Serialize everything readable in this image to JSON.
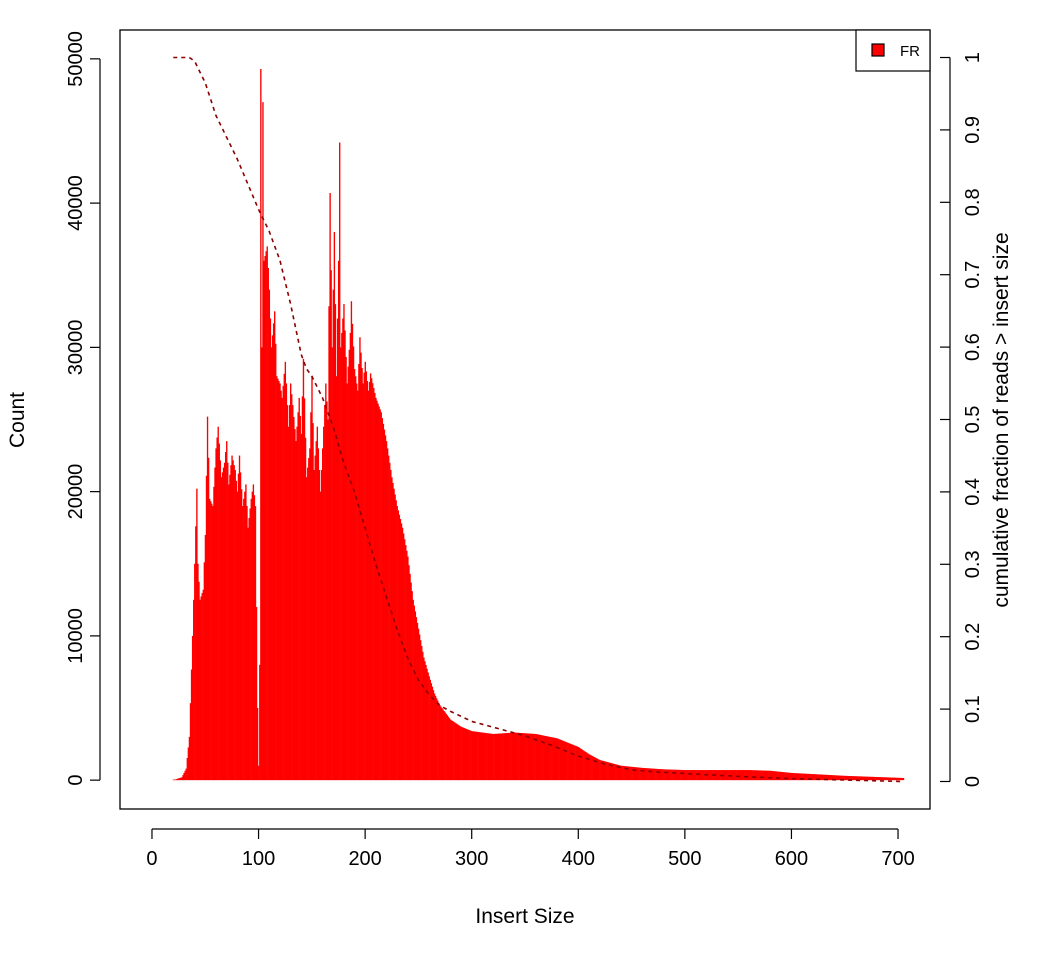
{
  "chart_data": {
    "type": "bar",
    "xlabel": "Insert Size",
    "ylabel": "Count",
    "y2label": "cumulative fraction of reads > insert size",
    "xlim": [
      -30,
      730
    ],
    "ylim": [
      -2000,
      52000
    ],
    "y2lim": [
      -0.038,
      1.038
    ],
    "xticks": [
      0,
      100,
      200,
      300,
      400,
      500,
      600,
      700
    ],
    "yticks": [
      0,
      10000,
      20000,
      30000,
      40000,
      50000
    ],
    "y2ticks": [
      0,
      0.1,
      0.2,
      0.3,
      0.4,
      0.5,
      0.6,
      0.7,
      0.8,
      0.9,
      1
    ],
    "xtick_labels": [
      "0",
      "100",
      "200",
      "300",
      "400",
      "500",
      "600",
      "700"
    ],
    "ytick_labels": [
      "0",
      "10000",
      "20000",
      "30000",
      "40000",
      "50000"
    ],
    "y2tick_labels": [
      "0",
      "0.1",
      "0.2",
      "0.3",
      "0.4",
      "0.5",
      "0.6",
      "0.7",
      "0.8",
      "0.9",
      "1"
    ],
    "legend": {
      "position": "top-right",
      "entries": [
        "FR"
      ]
    },
    "colors": {
      "bars": "#ff0000",
      "cumulative_line": "#8b0000"
    },
    "series": [
      {
        "name": "FR",
        "kind": "bars",
        "profile": [
          [
            20,
            0
          ],
          [
            28,
            200
          ],
          [
            32,
            800
          ],
          [
            35,
            3000
          ],
          [
            38,
            10000
          ],
          [
            40,
            15000
          ],
          [
            42,
            20200
          ],
          [
            43,
            15000
          ],
          [
            45,
            12500
          ],
          [
            48,
            13200
          ],
          [
            50,
            17000
          ],
          [
            52,
            25200
          ],
          [
            54,
            19500
          ],
          [
            57,
            19000
          ],
          [
            60,
            23000
          ],
          [
            62,
            24500
          ],
          [
            65,
            21000
          ],
          [
            68,
            22000
          ],
          [
            70,
            23500
          ],
          [
            72,
            20500
          ],
          [
            75,
            22500
          ],
          [
            78,
            21500
          ],
          [
            80,
            20000
          ],
          [
            82,
            22500
          ],
          [
            85,
            19000
          ],
          [
            88,
            20500
          ],
          [
            90,
            17500
          ],
          [
            93,
            19500
          ],
          [
            95,
            20500
          ],
          [
            97,
            19000
          ],
          [
            98,
            12000
          ],
          [
            99,
            5000
          ],
          [
            100,
            1000
          ],
          [
            101,
            8000
          ],
          [
            102,
            49300
          ],
          [
            103,
            30000
          ],
          [
            104,
            47000
          ],
          [
            105,
            36000
          ],
          [
            108,
            37000
          ],
          [
            110,
            34000
          ],
          [
            112,
            30000
          ],
          [
            115,
            32500
          ],
          [
            117,
            28000
          ],
          [
            120,
            27500
          ],
          [
            122,
            26500
          ],
          [
            125,
            29000
          ],
          [
            128,
            24500
          ],
          [
            130,
            27500
          ],
          [
            132,
            26000
          ],
          [
            135,
            23500
          ],
          [
            138,
            26500
          ],
          [
            140,
            24000
          ],
          [
            142,
            29200
          ],
          [
            145,
            21000
          ],
          [
            148,
            23000
          ],
          [
            150,
            28000
          ],
          [
            152,
            21500
          ],
          [
            155,
            24500
          ],
          [
            158,
            20000
          ],
          [
            160,
            23000
          ],
          [
            163,
            27500
          ],
          [
            165,
            25000
          ],
          [
            167,
            40700
          ],
          [
            169,
            30000
          ],
          [
            171,
            38000
          ],
          [
            173,
            28000
          ],
          [
            175,
            36000
          ],
          [
            176,
            44200
          ],
          [
            177,
            30000
          ],
          [
            180,
            33000
          ],
          [
            183,
            27500
          ],
          [
            186,
            31000
          ],
          [
            187,
            33200
          ],
          [
            190,
            28500
          ],
          [
            193,
            27000
          ],
          [
            195,
            30700
          ],
          [
            198,
            27500
          ],
          [
            200,
            29000
          ],
          [
            203,
            27000
          ],
          [
            205,
            28200
          ],
          [
            210,
            26500
          ],
          [
            215,
            25500
          ],
          [
            220,
            23500
          ],
          [
            225,
            21000
          ],
          [
            230,
            19000
          ],
          [
            235,
            17500
          ],
          [
            240,
            15500
          ],
          [
            245,
            12500
          ],
          [
            250,
            10500
          ],
          [
            255,
            8500
          ],
          [
            260,
            7200
          ],
          [
            265,
            6000
          ],
          [
            270,
            5200
          ],
          [
            280,
            4200
          ],
          [
            290,
            3700
          ],
          [
            300,
            3400
          ],
          [
            320,
            3200
          ],
          [
            340,
            3300
          ],
          [
            360,
            3200
          ],
          [
            380,
            2900
          ],
          [
            390,
            2600
          ],
          [
            400,
            2300
          ],
          [
            410,
            1800
          ],
          [
            420,
            1400
          ],
          [
            440,
            1000
          ],
          [
            460,
            850
          ],
          [
            480,
            750
          ],
          [
            500,
            700
          ],
          [
            540,
            700
          ],
          [
            560,
            700
          ],
          [
            580,
            650
          ],
          [
            600,
            500
          ],
          [
            650,
            300
          ],
          [
            705,
            150
          ]
        ]
      },
      {
        "name": "cumulative",
        "kind": "line",
        "points": [
          [
            20,
            1.0
          ],
          [
            35,
            1.0
          ],
          [
            40,
            0.995
          ],
          [
            45,
            0.98
          ],
          [
            50,
            0.965
          ],
          [
            60,
            0.92
          ],
          [
            80,
            0.86
          ],
          [
            100,
            0.79
          ],
          [
            110,
            0.76
          ],
          [
            120,
            0.72
          ],
          [
            130,
            0.66
          ],
          [
            140,
            0.59
          ],
          [
            145,
            0.57
          ],
          [
            150,
            0.56
          ],
          [
            160,
            0.53
          ],
          [
            170,
            0.49
          ],
          [
            180,
            0.44
          ],
          [
            190,
            0.4
          ],
          [
            200,
            0.35
          ],
          [
            210,
            0.3
          ],
          [
            220,
            0.255
          ],
          [
            230,
            0.21
          ],
          [
            240,
            0.17
          ],
          [
            250,
            0.14
          ],
          [
            260,
            0.12
          ],
          [
            270,
            0.105
          ],
          [
            280,
            0.097
          ],
          [
            290,
            0.09
          ],
          [
            300,
            0.083
          ],
          [
            325,
            0.073
          ],
          [
            350,
            0.063
          ],
          [
            375,
            0.05
          ],
          [
            400,
            0.035
          ],
          [
            425,
            0.024
          ],
          [
            450,
            0.016
          ],
          [
            475,
            0.013
          ],
          [
            500,
            0.011
          ],
          [
            550,
            0.007
          ],
          [
            600,
            0.004
          ],
          [
            650,
            0.002
          ],
          [
            705,
            0.0
          ]
        ]
      }
    ]
  }
}
